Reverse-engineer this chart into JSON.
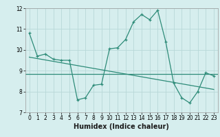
{
  "title": "",
  "xlabel": "Humidex (Indice chaleur)",
  "x": [
    0,
    1,
    2,
    3,
    4,
    5,
    6,
    7,
    8,
    9,
    10,
    11,
    12,
    13,
    14,
    15,
    16,
    17,
    18,
    19,
    20,
    21,
    22,
    23
  ],
  "y_main": [
    10.8,
    9.7,
    9.8,
    9.55,
    9.5,
    9.5,
    7.6,
    7.7,
    8.3,
    8.35,
    10.05,
    10.1,
    10.5,
    11.35,
    11.7,
    11.45,
    11.9,
    10.4,
    8.4,
    7.7,
    7.45,
    8.0,
    8.9,
    8.75
  ],
  "y_trend_start": 9.65,
  "y_trend_end": 8.1,
  "y_mean": 8.85,
  "line_color": "#2d8b78",
  "bg_color": "#d6eeee",
  "grid_color": "#b8d8d8",
  "ylim": [
    7,
    12
  ],
  "xlim": [
    -0.5,
    23.5
  ],
  "yticks": [
    7,
    8,
    9,
    10,
    11,
    12
  ],
  "xticks": [
    0,
    1,
    2,
    3,
    4,
    5,
    6,
    7,
    8,
    9,
    10,
    11,
    12,
    13,
    14,
    15,
    16,
    17,
    18,
    19,
    20,
    21,
    22,
    23
  ],
  "tick_fontsize": 5.5,
  "xlabel_fontsize": 7.0
}
